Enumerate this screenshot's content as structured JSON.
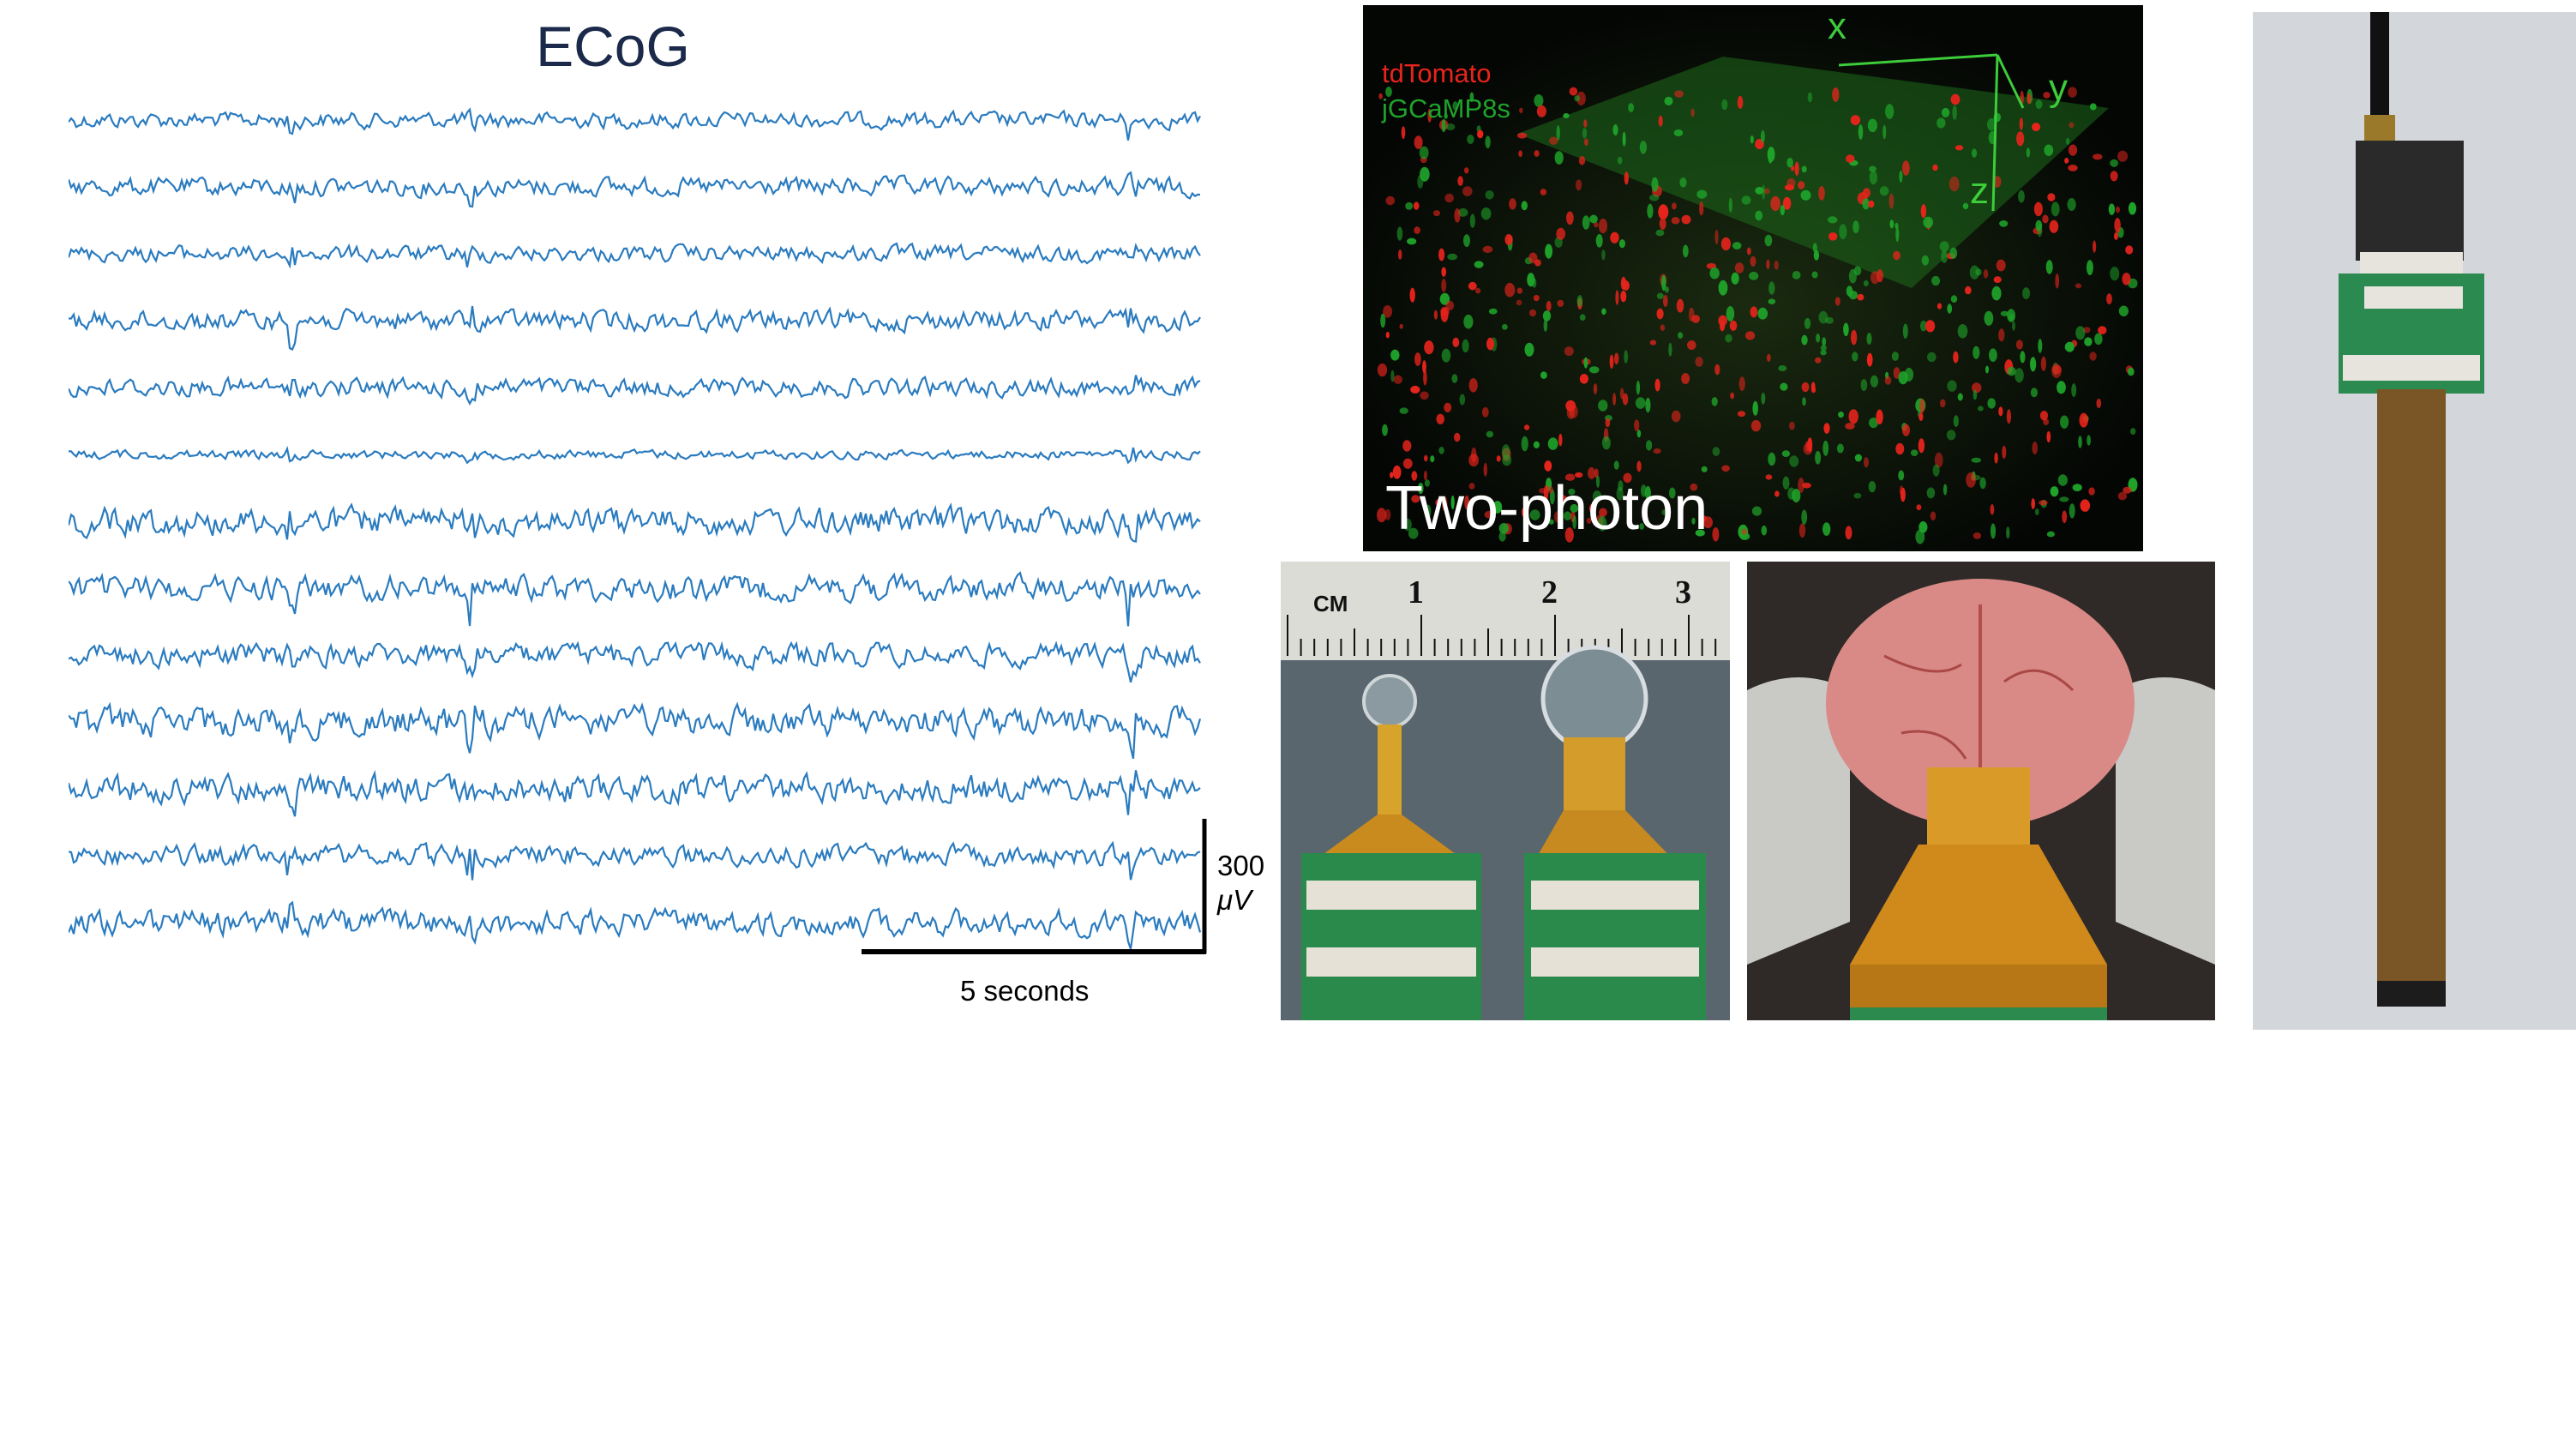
{
  "figure": {
    "ecog": {
      "title": "ECoG",
      "channel_count": 13,
      "trace_color": "#2a7bbf",
      "scale_bar": {
        "vertical_value": "300",
        "vertical_unit": "μV",
        "horizontal_label": "5 seconds"
      }
    },
    "two_photon": {
      "label": "Two-photon",
      "legend": [
        {
          "text": "tdTomato",
          "color": "#e8241c"
        },
        {
          "text": "jGCaMP8s",
          "color": "#1fa32a"
        }
      ],
      "axes": {
        "x": "x",
        "y": "y",
        "z": "z"
      }
    },
    "ruler": {
      "unit": "CM",
      "ticks": [
        "1",
        "2",
        "3"
      ]
    }
  }
}
